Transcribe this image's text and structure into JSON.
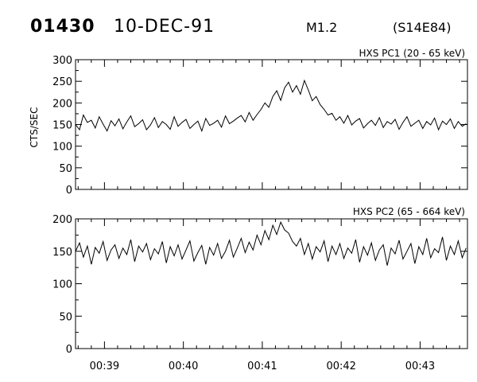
{
  "header": {
    "event_id": "01430",
    "date": "10-DEC-91",
    "class": "M1.2",
    "location": "(S14E84)"
  },
  "colors": {
    "ink": "#000000",
    "background": "#ffffff"
  },
  "chart_data": [
    {
      "type": "line",
      "title": "HXS PC1 (20 - 65 keV)",
      "xlabel": "",
      "ylabel": "CTS/SEC",
      "xlim": [
        "00:38:38",
        "00:43:36"
      ],
      "ylim": [
        0,
        300
      ],
      "yticks": [
        0,
        50,
        100,
        150,
        200,
        250,
        300
      ],
      "xtick_labels": [
        "00:39",
        "00:40",
        "00:41",
        "00:42",
        "00:43"
      ],
      "grid": false,
      "x": [
        "00:38:38",
        "00:38:41",
        "00:38:44",
        "00:38:47",
        "00:38:50",
        "00:38:53",
        "00:38:56",
        "00:38:59",
        "00:39:02",
        "00:39:05",
        "00:39:08",
        "00:39:11",
        "00:39:14",
        "00:39:17",
        "00:39:20",
        "00:39:23",
        "00:39:26",
        "00:39:29",
        "00:39:32",
        "00:39:35",
        "00:39:38",
        "00:39:41",
        "00:39:44",
        "00:39:47",
        "00:39:50",
        "00:39:53",
        "00:39:56",
        "00:39:59",
        "00:40:02",
        "00:40:05",
        "00:40:08",
        "00:40:11",
        "00:40:14",
        "00:40:17",
        "00:40:20",
        "00:40:23",
        "00:40:26",
        "00:40:29",
        "00:40:32",
        "00:40:35",
        "00:40:38",
        "00:40:41",
        "00:40:44",
        "00:40:47",
        "00:40:50",
        "00:40:53",
        "00:40:56",
        "00:40:59",
        "00:41:02",
        "00:41:05",
        "00:41:08",
        "00:41:11",
        "00:41:14",
        "00:41:17",
        "00:41:20",
        "00:41:23",
        "00:41:26",
        "00:41:29",
        "00:41:32",
        "00:41:35",
        "00:41:38",
        "00:41:41",
        "00:41:44",
        "00:41:47",
        "00:41:50",
        "00:41:53",
        "00:41:56",
        "00:41:59",
        "00:42:02",
        "00:42:05",
        "00:42:08",
        "00:42:11",
        "00:42:14",
        "00:42:17",
        "00:42:20",
        "00:42:23",
        "00:42:26",
        "00:42:29",
        "00:42:32",
        "00:42:35",
        "00:42:38",
        "00:42:41",
        "00:42:44",
        "00:42:47",
        "00:42:50",
        "00:42:53",
        "00:42:56",
        "00:42:59",
        "00:43:02",
        "00:43:05",
        "00:43:08",
        "00:43:11",
        "00:43:14",
        "00:43:17",
        "00:43:20",
        "00:43:23",
        "00:43:26",
        "00:43:29",
        "00:43:32",
        "00:43:35"
      ],
      "series": [
        {
          "values": [
            150,
            138,
            172,
            155,
            160,
            142,
            168,
            151,
            135,
            159,
            147,
            163,
            140,
            156,
            170,
            145,
            152,
            161,
            138,
            149,
            166,
            143,
            157,
            150,
            139,
            168,
            146,
            155,
            162,
            141,
            150,
            158,
            135,
            164,
            148,
            153,
            160,
            144,
            170,
            152,
            158,
            165,
            171,
            156,
            178,
            160,
            173,
            185,
            200,
            190,
            215,
            228,
            206,
            235,
            248,
            225,
            240,
            220,
            252,
            230,
            205,
            215,
            196,
            185,
            172,
            176,
            160,
            168,
            153,
            171,
            149,
            158,
            164,
            142,
            152,
            160,
            148,
            166,
            143,
            157,
            151,
            162,
            139,
            155,
            168,
            146,
            153,
            160,
            141,
            157,
            149,
            165,
            138,
            158,
            150,
            163,
            141,
            157,
            146,
            152
          ]
        }
      ]
    },
    {
      "type": "line",
      "title": "HXS PC2 (65 - 664 keV)",
      "xlabel": "",
      "ylabel": "",
      "xlim": [
        "00:38:38",
        "00:43:36"
      ],
      "ylim": [
        0,
        200
      ],
      "yticks": [
        0,
        50,
        100,
        150,
        200
      ],
      "xtick_labels": [
        "00:39",
        "00:40",
        "00:41",
        "00:42",
        "00:43"
      ],
      "grid": false,
      "x": [
        "00:38:38",
        "00:38:41",
        "00:38:44",
        "00:38:47",
        "00:38:50",
        "00:38:53",
        "00:38:56",
        "00:38:59",
        "00:39:02",
        "00:39:05",
        "00:39:08",
        "00:39:11",
        "00:39:14",
        "00:39:17",
        "00:39:20",
        "00:39:23",
        "00:39:26",
        "00:39:29",
        "00:39:32",
        "00:39:35",
        "00:39:38",
        "00:39:41",
        "00:39:44",
        "00:39:47",
        "00:39:50",
        "00:39:53",
        "00:39:56",
        "00:39:59",
        "00:40:02",
        "00:40:05",
        "00:40:08",
        "00:40:11",
        "00:40:14",
        "00:40:17",
        "00:40:20",
        "00:40:23",
        "00:40:26",
        "00:40:29",
        "00:40:32",
        "00:40:35",
        "00:40:38",
        "00:40:41",
        "00:40:44",
        "00:40:47",
        "00:40:50",
        "00:40:53",
        "00:40:56",
        "00:40:59",
        "00:41:02",
        "00:41:05",
        "00:41:08",
        "00:41:11",
        "00:41:14",
        "00:41:17",
        "00:41:20",
        "00:41:23",
        "00:41:26",
        "00:41:29",
        "00:41:32",
        "00:41:35",
        "00:41:38",
        "00:41:41",
        "00:41:44",
        "00:41:47",
        "00:41:50",
        "00:41:53",
        "00:41:56",
        "00:41:59",
        "00:42:02",
        "00:42:05",
        "00:42:08",
        "00:42:11",
        "00:42:14",
        "00:42:17",
        "00:42:20",
        "00:42:23",
        "00:42:26",
        "00:42:29",
        "00:42:32",
        "00:42:35",
        "00:42:38",
        "00:42:41",
        "00:42:44",
        "00:42:47",
        "00:42:50",
        "00:42:53",
        "00:42:56",
        "00:42:59",
        "00:43:02",
        "00:43:05",
        "00:43:08",
        "00:43:11",
        "00:43:14",
        "00:43:17",
        "00:43:20",
        "00:43:23",
        "00:43:26",
        "00:43:29",
        "00:43:32",
        "00:43:35"
      ],
      "series": [
        {
          "values": [
            150,
            163,
            141,
            158,
            130,
            156,
            147,
            165,
            136,
            152,
            160,
            139,
            155,
            145,
            168,
            134,
            158,
            149,
            162,
            137,
            154,
            146,
            165,
            132,
            157,
            143,
            160,
            138,
            152,
            166,
            135,
            148,
            159,
            130,
            156,
            144,
            162,
            139,
            150,
            167,
            141,
            155,
            170,
            148,
            164,
            152,
            175,
            160,
            182,
            168,
            190,
            176,
            195,
            183,
            178,
            165,
            158,
            170,
            145,
            162,
            138,
            157,
            149,
            166,
            134,
            158,
            145,
            162,
            139,
            155,
            147,
            168,
            133,
            157,
            144,
            163,
            136,
            152,
            160,
            128,
            155,
            146,
            167,
            138,
            150,
            162,
            131,
            157,
            145,
            170,
            140,
            154,
            148,
            172,
            136,
            158,
            145,
            166,
            140,
            155
          ]
        }
      ]
    }
  ]
}
